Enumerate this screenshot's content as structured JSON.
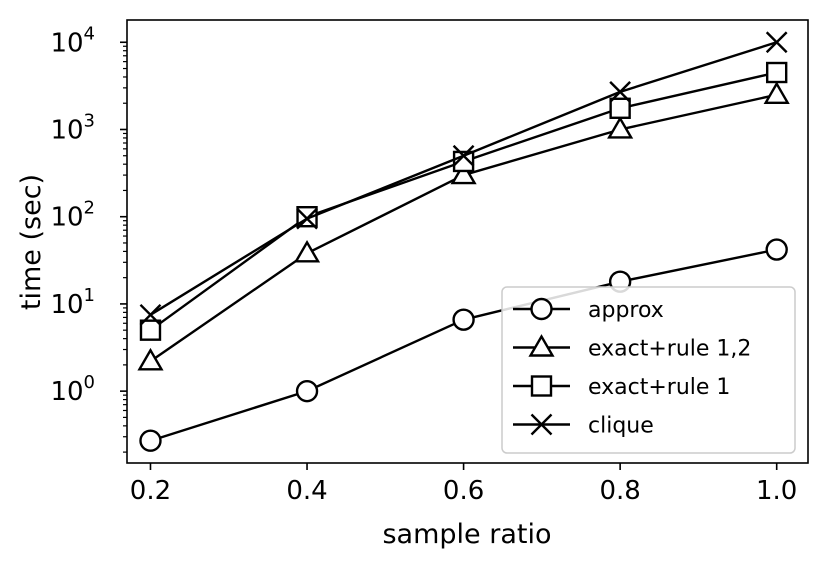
{
  "chart_data": {
    "type": "line",
    "xlabel": "sample ratio",
    "ylabel": "time (sec)",
    "yscale": "log",
    "xlim": [
      0.17,
      1.04
    ],
    "ylim": [
      0.15,
      18000
    ],
    "x_ticks": [
      {
        "value": 0.2,
        "label": "0.2"
      },
      {
        "value": 0.4,
        "label": "0.4"
      },
      {
        "value": 0.6,
        "label": "0.6"
      },
      {
        "value": 0.8,
        "label": "0.8"
      },
      {
        "value": 1.0,
        "label": "1.0"
      }
    ],
    "y_ticks": [
      {
        "value": 1,
        "base": "10",
        "exp": "0"
      },
      {
        "value": 10,
        "base": "10",
        "exp": "1"
      },
      {
        "value": 100,
        "base": "10",
        "exp": "2"
      },
      {
        "value": 1000,
        "base": "10",
        "exp": "3"
      },
      {
        "value": 10000,
        "base": "10",
        "exp": "4"
      }
    ],
    "grid": false,
    "legend_position": "lower-right",
    "x": [
      0.2,
      0.4,
      0.6,
      0.8,
      1.0
    ],
    "series": [
      {
        "name": "approx",
        "marker": "circle",
        "values": [
          0.27,
          1.0,
          6.6,
          18,
          42
        ]
      },
      {
        "name": "exact+rule 1,2",
        "marker": "triangle",
        "values": [
          2.2,
          38,
          300,
          1000,
          2500
        ]
      },
      {
        "name": "exact+rule 1",
        "marker": "square",
        "values": [
          5,
          100,
          430,
          1750,
          4500
        ]
      },
      {
        "name": "clique",
        "marker": "x",
        "values": [
          7.5,
          95,
          500,
          2700,
          10000
        ]
      }
    ],
    "line_color": "#000000"
  }
}
